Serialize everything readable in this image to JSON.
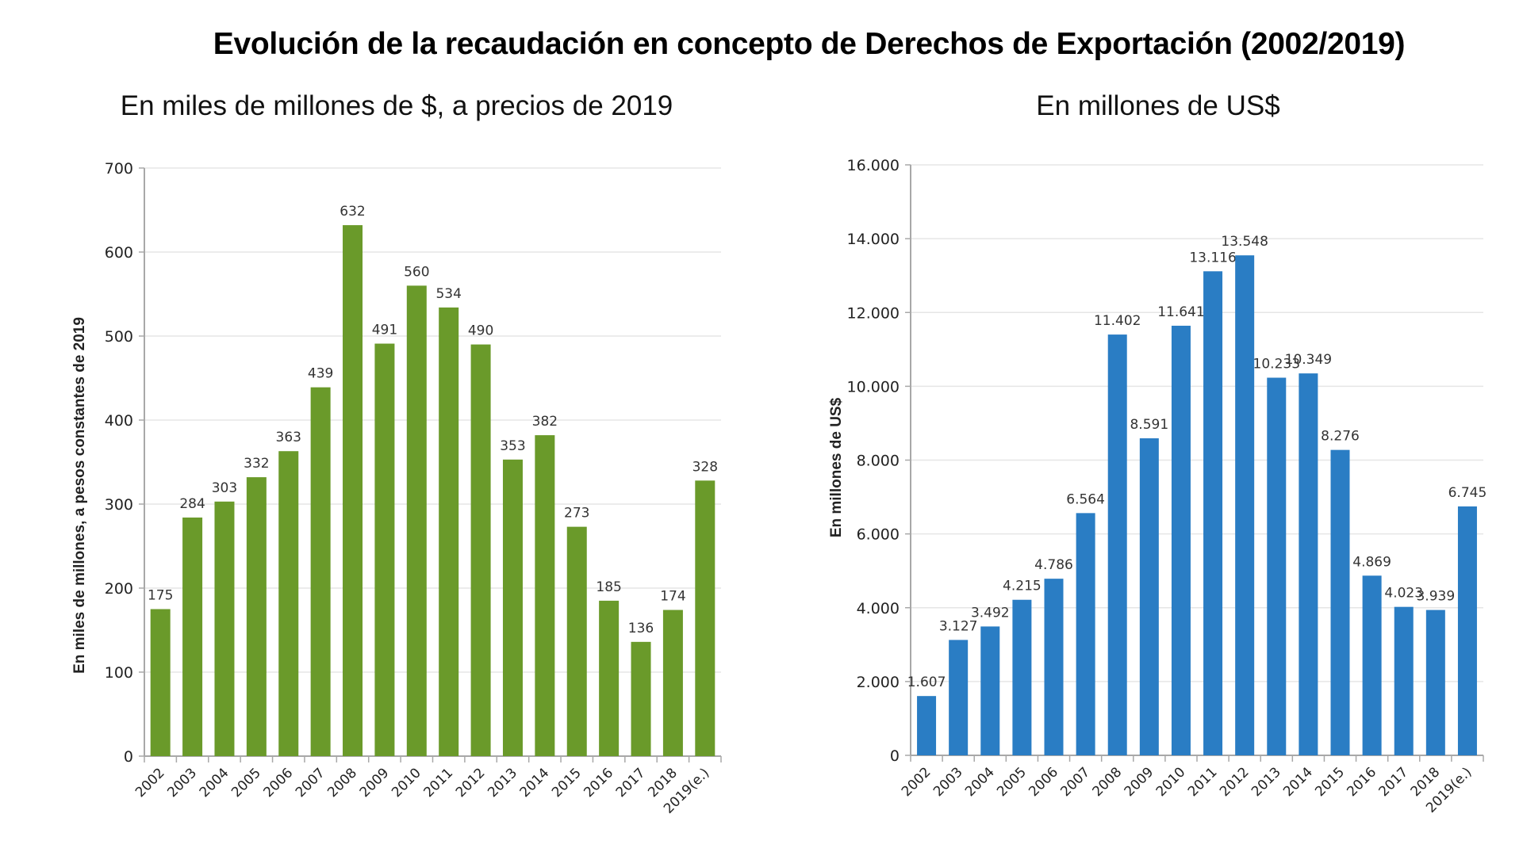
{
  "title": "Evolución de la recaudación en concepto de Derechos de Exportación (2002/2019)",
  "chart_data": [
    {
      "type": "bar",
      "title": "En miles de millones de $, a precios de 2019",
      "xlabel": "",
      "ylabel": "En miles de millones, a pesos constantes de 2019",
      "ylim": [
        0,
        700
      ],
      "yticks": [
        0,
        100,
        200,
        300,
        400,
        500,
        600,
        700
      ],
      "ytick_labels": [
        "0",
        "100",
        "200",
        "300",
        "400",
        "500",
        "600",
        "700"
      ],
      "grid": true,
      "color": "#6a9a2a",
      "categories": [
        "2002",
        "2003",
        "2004",
        "2005",
        "2006",
        "2007",
        "2008",
        "2009",
        "2010",
        "2011",
        "2012",
        "2013",
        "2014",
        "2015",
        "2016",
        "2017",
        "2018",
        "2019(e.)"
      ],
      "values": [
        175,
        284,
        303,
        332,
        363,
        439,
        632,
        491,
        560,
        534,
        490,
        353,
        382,
        273,
        185,
        136,
        174,
        328
      ],
      "data_labels": [
        "175",
        "284",
        "303",
        "332",
        "363",
        "439",
        "632",
        "491",
        "560",
        "534",
        "490",
        "353",
        "382",
        "273",
        "185",
        "136",
        "174",
        "328"
      ]
    },
    {
      "type": "bar",
      "title": "En millones de US$",
      "xlabel": "",
      "ylabel": "En millones de US$",
      "ylim": [
        0,
        16000
      ],
      "yticks": [
        0,
        2000,
        4000,
        6000,
        8000,
        10000,
        12000,
        14000,
        16000
      ],
      "ytick_labels": [
        "0",
        "2.000",
        "4.000",
        "6.000",
        "8.000",
        "10.000",
        "12.000",
        "14.000",
        "16.000"
      ],
      "grid": true,
      "color": "#2a7dc4",
      "categories": [
        "2002",
        "2003",
        "2004",
        "2005",
        "2006",
        "2007",
        "2008",
        "2009",
        "2010",
        "2011",
        "2012",
        "2013",
        "2014",
        "2015",
        "2016",
        "2017",
        "2018",
        "2019(e.)"
      ],
      "values": [
        1607,
        3127,
        3492,
        4215,
        4786,
        6564,
        11402,
        8591,
        11641,
        13116,
        13548,
        10233,
        10349,
        8276,
        4869,
        4023,
        3939,
        6745
      ],
      "data_labels": [
        "1.607",
        "3.127",
        "3.492",
        "4.215",
        "4.786",
        "6.564",
        "11.402",
        "8.591",
        "11.641",
        "13.116",
        "13.548",
        "10.233",
        "10.349",
        "8.276",
        "4.869",
        "4.023",
        "3.939",
        "6.745"
      ]
    }
  ]
}
